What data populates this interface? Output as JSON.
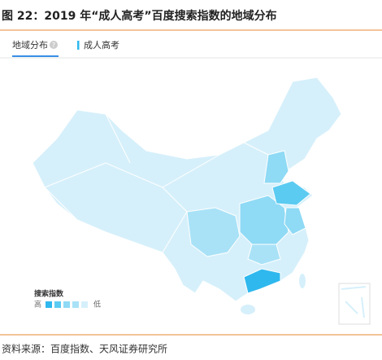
{
  "header": {
    "title": "图 22：2019 年“成人高考”百度搜索指数的地域分布"
  },
  "tabs": {
    "active": "地域分布",
    "help": "?"
  },
  "legend": {
    "series": "成人高考"
  },
  "scale": {
    "title": "搜索指数",
    "high": "高",
    "low": "低"
  },
  "source": "资料来源：百度指数、天风证券研究所"
}
